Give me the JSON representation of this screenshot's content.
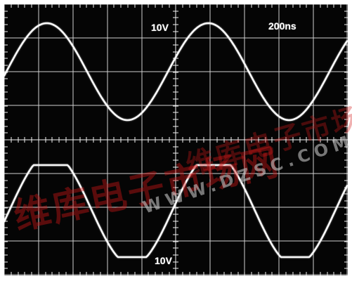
{
  "screen": {
    "top_trace_volts_per_div": "10V",
    "bottom_trace_volts_per_div": "10V",
    "time_per_div": "200ns"
  },
  "colors": {
    "screen_background": "#050505",
    "grid": "#d9d9d9",
    "trace": "#fbfbfb",
    "watermark_red": "#d21919",
    "watermark_gray": "#bebebe"
  },
  "watermark": {
    "primary_text": "维库电子市场网",
    "url_text": "WWW.DZSC.COM"
  }
}
